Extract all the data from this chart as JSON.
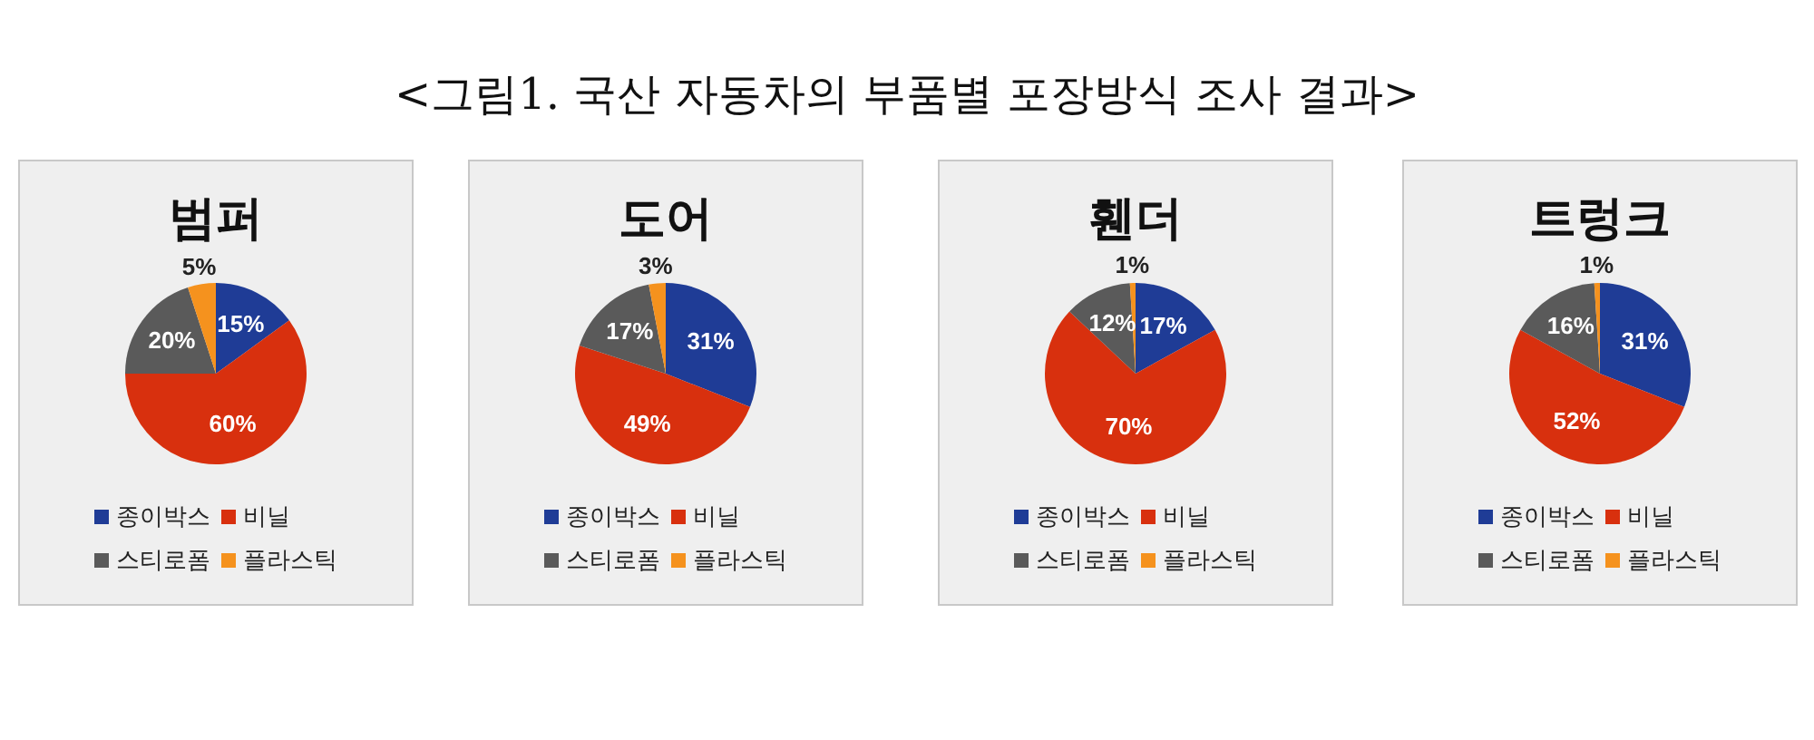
{
  "chart_data": [
    {
      "type": "pie",
      "title": "범퍼",
      "annotations": [
        "<그림1. 국산 자동차의 부품별 포장방식 조사 결과>"
      ],
      "categories": [
        "종이박스",
        "비닐",
        "스티로폼",
        "플라스틱"
      ],
      "values": [
        15,
        60,
        20,
        5
      ],
      "value_labels": [
        "15%",
        "60%",
        "20%",
        "5%"
      ],
      "colors": [
        "#1f3c96",
        "#d8300e",
        "#5a5a5a",
        "#f5921e"
      ],
      "legend": "bottom"
    },
    {
      "type": "pie",
      "title": "도어",
      "categories": [
        "종이박스",
        "비닐",
        "스티로폼",
        "플라스틱"
      ],
      "values": [
        31,
        49,
        17,
        3
      ],
      "value_labels": [
        "31%",
        "49%",
        "17%",
        "3%"
      ],
      "colors": [
        "#1f3c96",
        "#d8300e",
        "#5a5a5a",
        "#f5921e"
      ],
      "legend": "bottom"
    },
    {
      "type": "pie",
      "title": "휀더",
      "categories": [
        "종이박스",
        "비닐",
        "스티로폼",
        "플라스틱"
      ],
      "values": [
        17,
        70,
        12,
        1
      ],
      "value_labels": [
        "17%",
        "70%",
        "12%",
        "1%"
      ],
      "colors": [
        "#1f3c96",
        "#d8300e",
        "#5a5a5a",
        "#f5921e"
      ],
      "legend": "bottom"
    },
    {
      "type": "pie",
      "title": "트렁크",
      "categories": [
        "종이박스",
        "비닐",
        "스티로폼",
        "플라스틱"
      ],
      "values": [
        31,
        52,
        16,
        1
      ],
      "value_labels": [
        "31%",
        "52%",
        "16%",
        "1%"
      ],
      "colors": [
        "#1f3c96",
        "#d8300e",
        "#5a5a5a",
        "#f5921e"
      ],
      "legend": "bottom"
    }
  ]
}
